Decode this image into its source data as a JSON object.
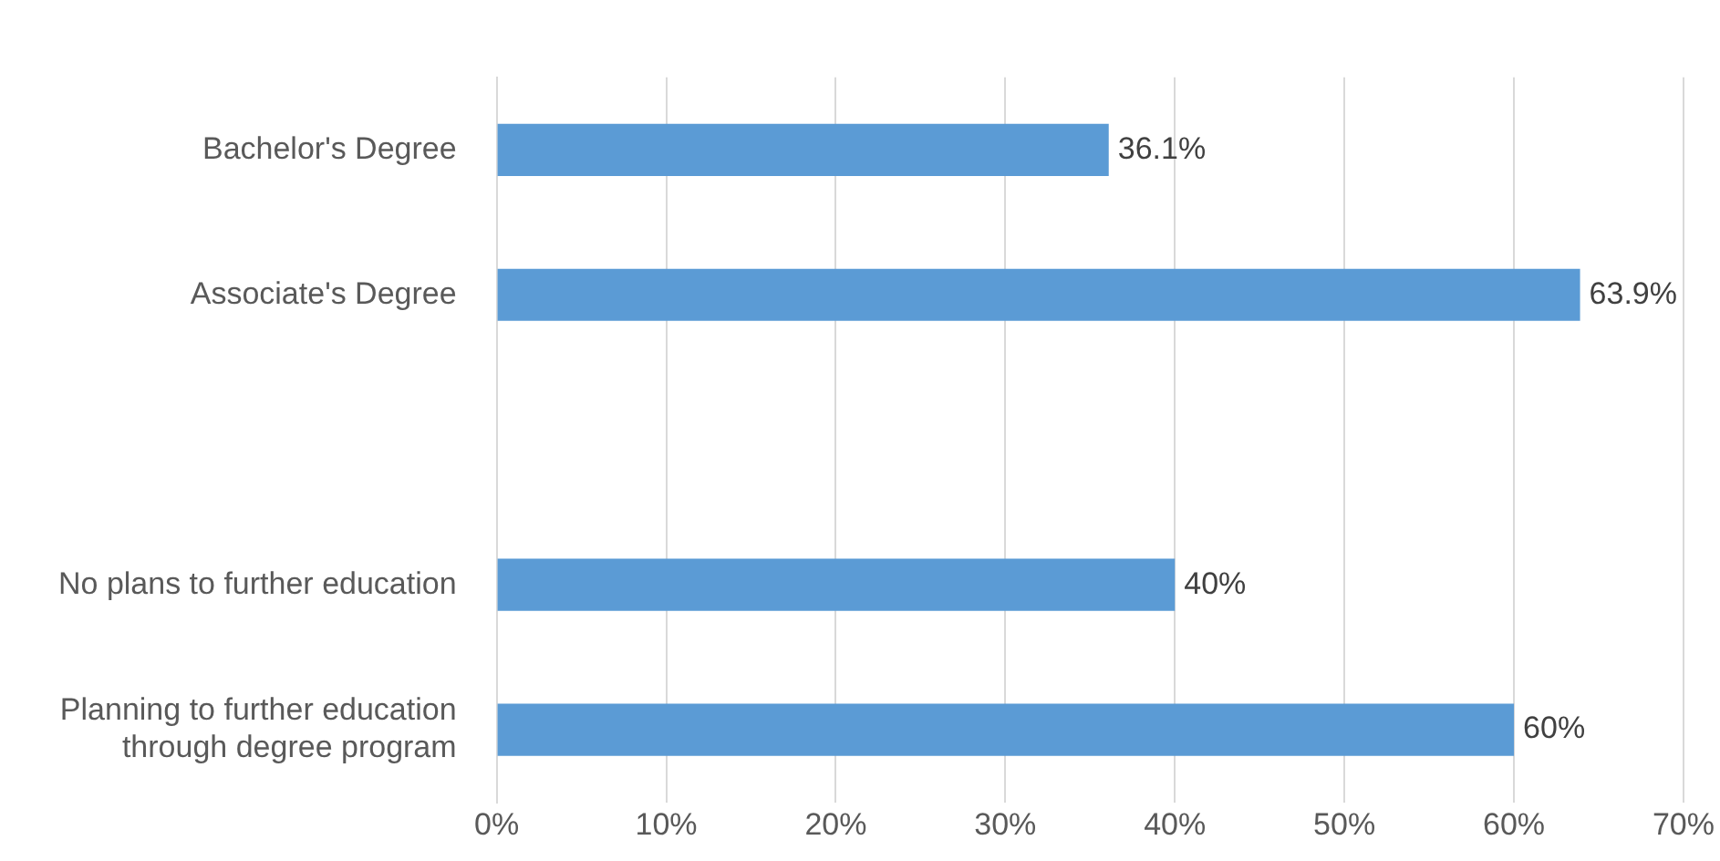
{
  "chart_data": {
    "type": "bar",
    "orientation": "horizontal",
    "categories": [
      "Bachelor's Degree",
      "Associate's Degree",
      null,
      "No plans to further education",
      "Planning to further education through degree program"
    ],
    "values": [
      36.1,
      63.9,
      null,
      40,
      60
    ],
    "value_labels": [
      "36.1%",
      "63.9%",
      null,
      "40%",
      "60%"
    ],
    "color": "#5b9bd5",
    "xlim": [
      0,
      70
    ],
    "xticks": [
      {
        "value": 0,
        "label": "0%"
      },
      {
        "value": 10,
        "label": "10%"
      },
      {
        "value": 20,
        "label": "20%"
      },
      {
        "value": 30,
        "label": "30%"
      },
      {
        "value": 40,
        "label": "40%"
      },
      {
        "value": 50,
        "label": "50%"
      },
      {
        "value": 60,
        "label": "60%"
      },
      {
        "value": 70,
        "label": "70%"
      }
    ],
    "grid": "x",
    "legend": false
  }
}
